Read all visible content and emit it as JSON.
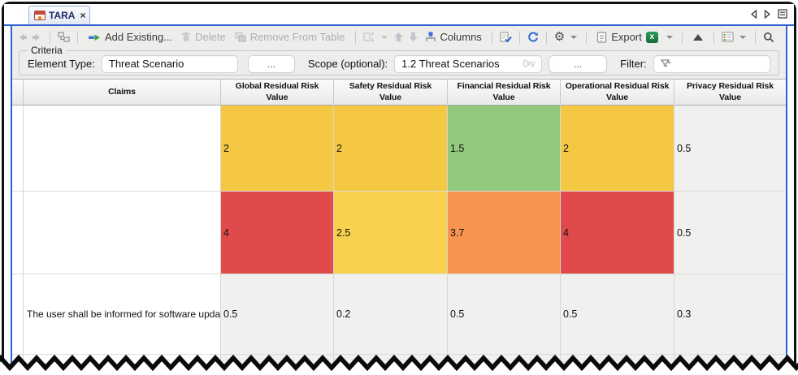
{
  "tab_bar": {
    "tab_label": "TARA",
    "close_glyph": "×"
  },
  "toolbar": {
    "add_existing": "Add Existing...",
    "delete": "Delete",
    "remove_from_table": "Remove From Table",
    "columns": "Columns",
    "export": "Export"
  },
  "criteria": {
    "title": "Criteria",
    "element_type_label": "Element Type:",
    "element_type_value": "Threat Scenario",
    "browse_element": "...",
    "scope_label": "Scope (optional):",
    "scope_value": "1.2 Threat Scenarios",
    "scope_hint": "()xy",
    "browse_scope": "...",
    "filter_label": "Filter:",
    "filter_value": ""
  },
  "table": {
    "headers": [
      "Claims",
      "Global Residual Risk Value",
      "Safety Residual Risk Value",
      "Financial Residual Risk Value",
      "Operational Residual Risk Value",
      "Privacy Residual Risk Value"
    ],
    "rows": [
      {
        "claims": "",
        "cells": [
          {
            "value": "2",
            "bg": "#F5C843"
          },
          {
            "value": "2",
            "bg": "#F5C843"
          },
          {
            "value": "1.5",
            "bg": "#93C97E"
          },
          {
            "value": "2",
            "bg": "#F5C843"
          },
          {
            "value": "0.5",
            "bg": "#F0F0EE"
          }
        ]
      },
      {
        "claims": "",
        "cells": [
          {
            "value": "4",
            "bg": "#E04A4B"
          },
          {
            "value": "2.5",
            "bg": "#F8D24E"
          },
          {
            "value": "3.7",
            "bg": "#F89350"
          },
          {
            "value": "4",
            "bg": "#E04A4B"
          },
          {
            "value": "0.5",
            "bg": "#F0F0EE"
          }
        ]
      },
      {
        "claims": "The user shall be informed for software upda",
        "cells": [
          {
            "value": "0.5",
            "bg": "#F0F0EE"
          },
          {
            "value": "0.2",
            "bg": "#F0F0EE"
          },
          {
            "value": "0.5",
            "bg": "#F0F0EE"
          },
          {
            "value": "0.5",
            "bg": "#F0F0EE"
          },
          {
            "value": "0.3",
            "bg": "#F0F0EE"
          }
        ]
      }
    ]
  },
  "colors": {
    "accent_blue": "#2F62D0",
    "risk_high": "#E04A4B",
    "risk_medium_high": "#F89350",
    "risk_medium": "#F5C843",
    "risk_low": "#93C97E",
    "neutral_cell": "#F0F0EE"
  }
}
